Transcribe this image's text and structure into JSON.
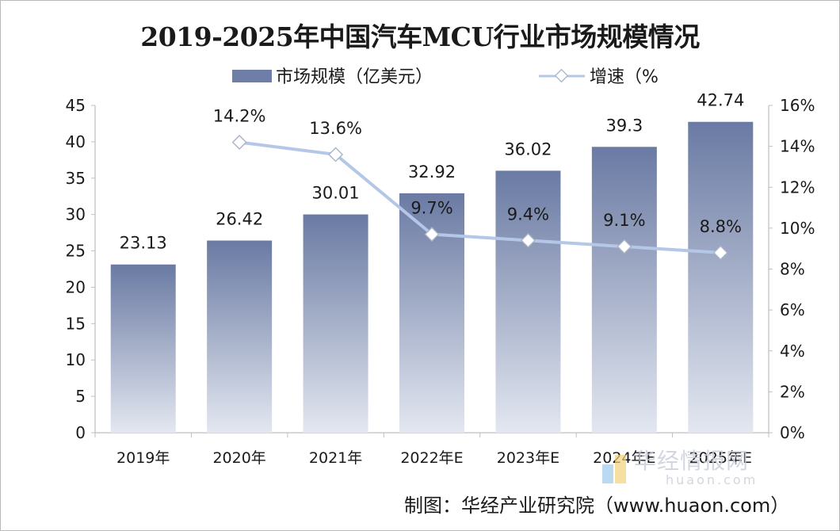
{
  "chart_data": {
    "type": "bar",
    "title": "2019-2025年中国汽车MCU行业市场规模情况",
    "categories": [
      "2019年",
      "2020年",
      "2021年",
      "2022年E",
      "2023年E",
      "2024年E",
      "2025年E"
    ],
    "series": [
      {
        "name": "市场规模（亿美元）",
        "type": "bar",
        "axis": "left",
        "values": [
          23.13,
          26.42,
          30.01,
          32.92,
          36.02,
          39.3,
          42.74
        ],
        "labels": [
          "23.13",
          "26.42",
          "30.01",
          "32.92",
          "36.02",
          "39.3",
          "42.74"
        ],
        "color": "#6e7ea6"
      },
      {
        "name": "增速（%",
        "type": "line",
        "axis": "right",
        "values": [
          null,
          14.2,
          13.6,
          9.7,
          9.4,
          9.1,
          8.8
        ],
        "labels": [
          "",
          "14.2%",
          "13.6%",
          "9.7%",
          "9.4%",
          "9.1%",
          "8.8%"
        ],
        "color": "#b4c7e7"
      }
    ],
    "y_left": {
      "min": 0,
      "max": 45,
      "step": 5,
      "tick_labels": [
        "0",
        "5",
        "10",
        "15",
        "20",
        "25",
        "30",
        "35",
        "40",
        "45"
      ]
    },
    "y_right": {
      "min": 0,
      "max": 16,
      "step": 2,
      "tick_labels": [
        "0%",
        "2%",
        "4%",
        "6%",
        "8%",
        "10%",
        "12%",
        "14%",
        "16%"
      ]
    },
    "legend_position": "top-center",
    "grid": false
  },
  "source_credit": "制图：华经产业研究院（www.huaon.com）",
  "watermark": {
    "name": "华经情报网",
    "domain": "huaon.com"
  }
}
